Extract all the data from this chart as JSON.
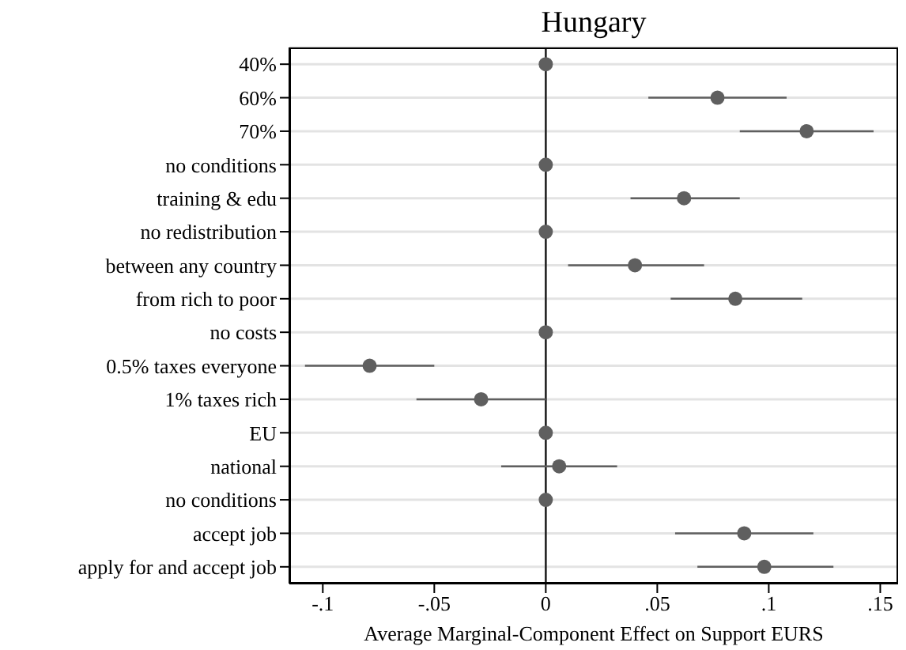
{
  "chart_data": {
    "type": "scatter",
    "orientation": "horizontal",
    "title": "Hungary",
    "xlabel": "Average Marginal-Component Effect on Support EURS",
    "categories": [
      "40%",
      "60%",
      "70%",
      "no conditions",
      "training & edu",
      "no redistribution",
      "between any country",
      "from rich to poor",
      "no costs",
      "0.5% taxes everyone",
      "1% taxes rich",
      "EU",
      "national",
      "no conditions",
      "accept job",
      "apply for and accept job"
    ],
    "values": [
      0,
      0.077,
      0.117,
      0,
      0.062,
      0,
      0.04,
      0.085,
      0,
      -0.079,
      -0.029,
      0,
      0.006,
      0,
      0.089,
      0.098
    ],
    "errors": [
      null,
      [
        0.046,
        0.108
      ],
      [
        0.087,
        0.147
      ],
      null,
      [
        0.038,
        0.087
      ],
      null,
      [
        0.01,
        0.071
      ],
      [
        0.056,
        0.115
      ],
      null,
      [
        -0.108,
        -0.05
      ],
      [
        -0.058,
        0.0
      ],
      null,
      [
        -0.02,
        0.032
      ],
      null,
      [
        0.058,
        0.12
      ],
      [
        0.068,
        0.129
      ]
    ],
    "color": "#5f5f5f",
    "marker": "circle",
    "grid": "y",
    "xlim": [
      -0.115,
      0.158
    ],
    "xticks": [
      {
        "value": -0.1,
        "label": "-.1"
      },
      {
        "value": -0.05,
        "label": "-.05"
      },
      0,
      {
        "value": 0.05,
        "label": ".05"
      },
      {
        "value": 0.1,
        "label": ".1"
      },
      {
        "value": 0.15,
        "label": ".15"
      }
    ],
    "ref_lines": [
      {
        "axis": "x",
        "value": 0,
        "color": "#222222"
      }
    ]
  }
}
